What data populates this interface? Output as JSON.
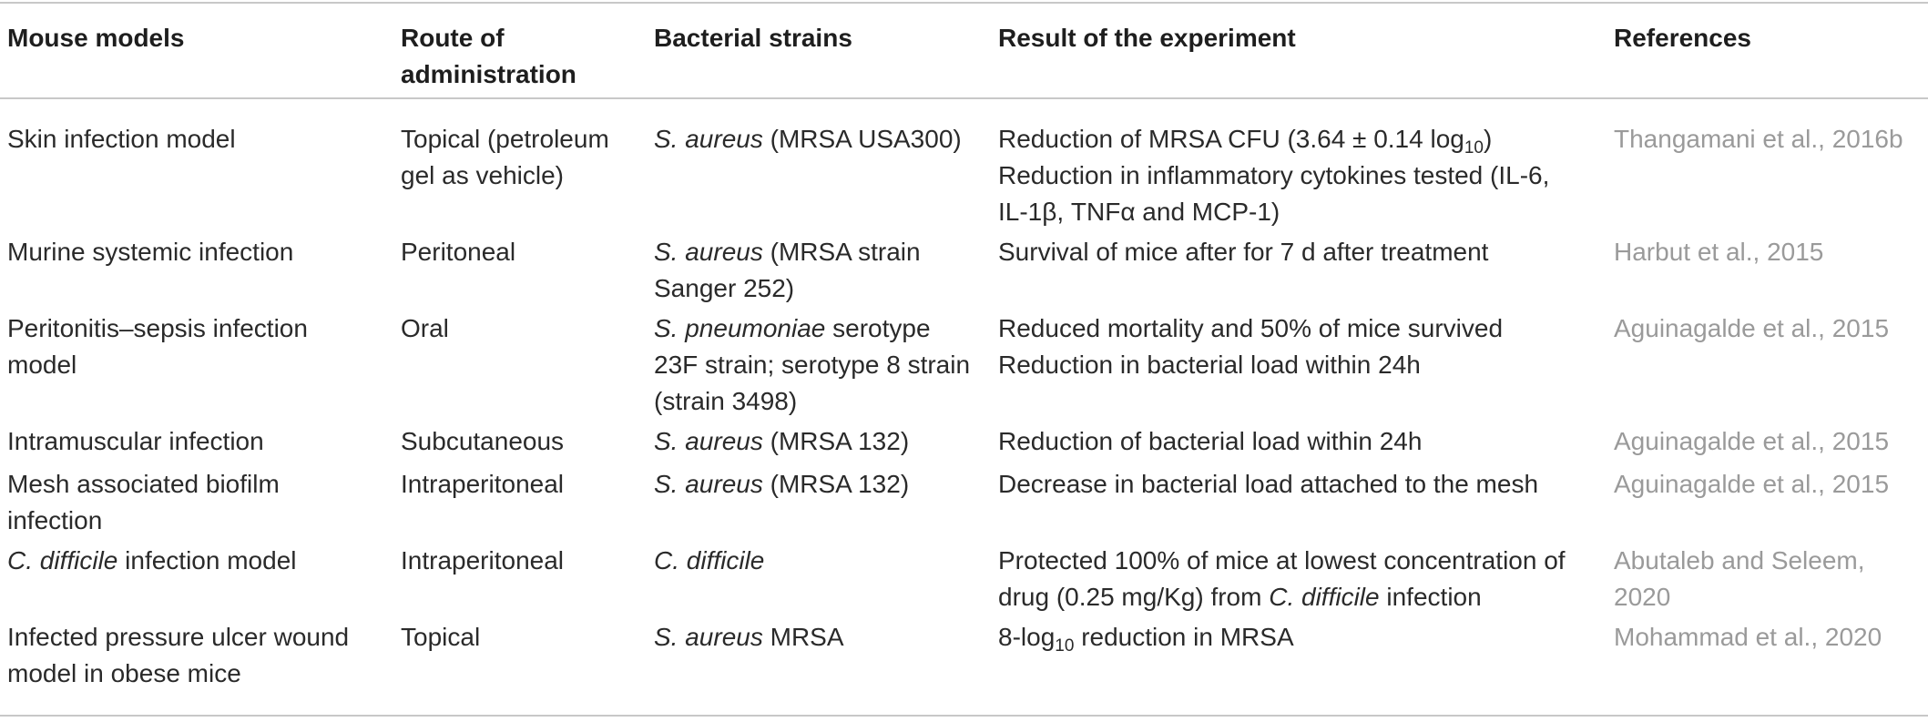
{
  "headers": {
    "mouse_models": "Mouse models",
    "route_line1": "Route of",
    "route_line2": "administration",
    "bacterial_strains": "Bacterial strains",
    "result": "Result of the experiment",
    "references": "References"
  },
  "rows": [
    {
      "model": [
        "Skin infection model"
      ],
      "route": [
        "Topical (petroleum",
        "gel as vehicle)"
      ],
      "strain_italic": "S. aureus",
      "strain_rest": [
        "(MRSA USA300)"
      ],
      "result": {
        "l1_a": "Reduction of MRSA CFU (3.64 ± 0.14 log",
        "l1_sub": "10",
        "l1_b": ")",
        "l2": "Reduction in inflammatory cytokines tested (IL-6,",
        "l3": "IL-1β, TNFα and MCP-1)"
      },
      "reference": "Thangamani et al., 2016b"
    },
    {
      "model": [
        "Murine systemic infection"
      ],
      "route": [
        "Peritoneal"
      ],
      "strain_italic": "S. aureus",
      "strain_rest": [
        "(MRSA strain",
        "Sanger 252)"
      ],
      "result": {
        "l1": "Survival of mice after for 7 d after treatment"
      },
      "reference": "Harbut et al., 2015"
    },
    {
      "model": [
        "Peritonitis–sepsis infection",
        "model"
      ],
      "route": [
        "Oral"
      ],
      "strain_italic": "S. pneumoniae",
      "strain_rest": [
        "serotype",
        "23F strain; serotype 8 strain",
        "(strain 3498)"
      ],
      "result": {
        "l1": "Reduced mortality and 50% of mice survived",
        "l2": "Reduction in bacterial load within 24h"
      },
      "reference": "Aguinagalde et al., 2015"
    },
    {
      "model": [
        "Intramuscular infection"
      ],
      "route": [
        "Subcutaneous"
      ],
      "strain_italic": "S. aureus",
      "strain_rest": [
        "(MRSA 132)"
      ],
      "result": {
        "l1": "Reduction of bacterial load within 24h"
      },
      "reference": "Aguinagalde et al., 2015"
    },
    {
      "model": [
        "Mesh associated biofilm",
        "infection"
      ],
      "route": [
        "Intraperitoneal"
      ],
      "strain_italic": "S. aureus",
      "strain_rest": [
        "(MRSA 132)"
      ],
      "result": {
        "l1": "Decrease in bacterial load attached to the mesh"
      },
      "reference": "Aguinagalde et al., 2015"
    },
    {
      "model_italic": "C. difficile",
      "model_rest": "infection model",
      "route": [
        "Intraperitoneal"
      ],
      "strain_italic": "C. difficile",
      "result": {
        "l1": "Protected 100% of mice at lowest concentration of",
        "l2_a": "drug (0.25 mg/Kg) from",
        "l2_i": "C. difficile",
        "l2_b": "infection"
      },
      "reference": "Abutaleb and Seleem, 2020"
    },
    {
      "model": [
        "Infected pressure ulcer wound",
        "model in obese mice"
      ],
      "route": [
        "Topical"
      ],
      "strain_italic": "S. aureus",
      "strain_rest": [
        "MRSA"
      ],
      "result": {
        "l1_a": "8-log",
        "l1_sub": "10",
        "l1_b": "reduction in MRSA"
      },
      "reference": "Mohammad et al., 2020"
    }
  ]
}
